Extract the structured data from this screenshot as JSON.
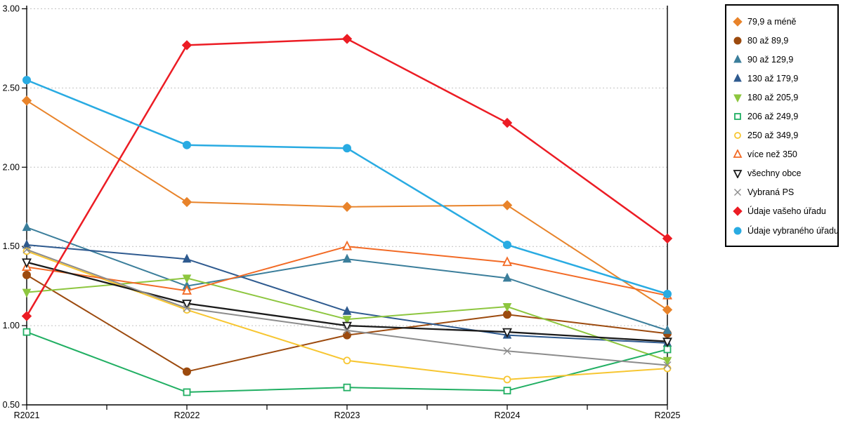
{
  "chart_data": {
    "type": "line",
    "title": "",
    "xlabel": "",
    "ylabel": "",
    "x_categories": [
      "R2021",
      "R2022",
      "R2023",
      "R2024",
      "R2025"
    ],
    "ylim": [
      0.5,
      3.0
    ],
    "ytick_labels": [
      "0.50",
      "1.00",
      "1.50",
      "2.00",
      "2.50",
      "3.00"
    ],
    "ytick_values": [
      0.5,
      1.0,
      1.5,
      2.0,
      2.5,
      3.0
    ],
    "grid": "horizontal-dotted",
    "gridline_color": "#c2c2c2",
    "axis_color": "#000000",
    "legend_position": "top-right",
    "series": [
      {
        "name": "79,9 a méně",
        "color": "#e8832a",
        "marker": "diamond",
        "fill": "filled",
        "values": [
          2.42,
          1.78,
          1.75,
          1.76,
          1.1
        ]
      },
      {
        "name": "80 až 89,9",
        "color": "#9c4a0e",
        "marker": "circle",
        "fill": "filled",
        "values": [
          1.32,
          0.71,
          0.94,
          1.07,
          0.95
        ]
      },
      {
        "name": "90 až 129,9",
        "color": "#3b7e9b",
        "marker": "triangle-up",
        "fill": "filled",
        "values": [
          1.62,
          1.25,
          1.42,
          1.3,
          0.97
        ]
      },
      {
        "name": "130 až 179,9",
        "color": "#2e5a8f",
        "marker": "triangle-up",
        "fill": "filled",
        "values": [
          1.51,
          1.42,
          1.09,
          0.94,
          0.89
        ]
      },
      {
        "name": "180 až 205,9",
        "color": "#8dc63f",
        "marker": "triangle-down",
        "fill": "filled",
        "values": [
          1.21,
          1.3,
          1.04,
          1.12,
          0.78
        ]
      },
      {
        "name": "206 až 249,9",
        "color": "#21af63",
        "marker": "square",
        "fill": "open",
        "values": [
          0.96,
          0.58,
          0.61,
          0.59,
          0.85
        ]
      },
      {
        "name": "250 až 349,9",
        "color": "#f7c631",
        "marker": "circle",
        "fill": "open",
        "values": [
          1.47,
          1.1,
          0.78,
          0.66,
          0.73
        ]
      },
      {
        "name": "více než 350",
        "color": "#f26a25",
        "marker": "triangle-up",
        "fill": "open",
        "values": [
          1.37,
          1.22,
          1.5,
          1.4,
          1.19
        ]
      },
      {
        "name": "všechny obce",
        "color": "#1a1a1a",
        "marker": "triangle-down",
        "fill": "open",
        "values": [
          1.4,
          1.14,
          1.0,
          0.96,
          0.9
        ]
      },
      {
        "name": "Vybraná PS",
        "color": "#8c8c8c",
        "marker": "x",
        "fill": "open",
        "values": [
          1.48,
          1.11,
          0.97,
          0.84,
          0.75
        ]
      },
      {
        "name": "Údaje vašeho úřadu",
        "color": "#ec1c24",
        "marker": "diamond",
        "fill": "filled",
        "values": [
          1.06,
          2.77,
          2.81,
          2.28,
          1.55
        ]
      },
      {
        "name": "Údaje vybraného úřadu",
        "color": "#29abe2",
        "marker": "circle",
        "fill": "filled",
        "values": [
          2.55,
          2.14,
          2.12,
          1.51,
          1.2
        ]
      }
    ]
  }
}
